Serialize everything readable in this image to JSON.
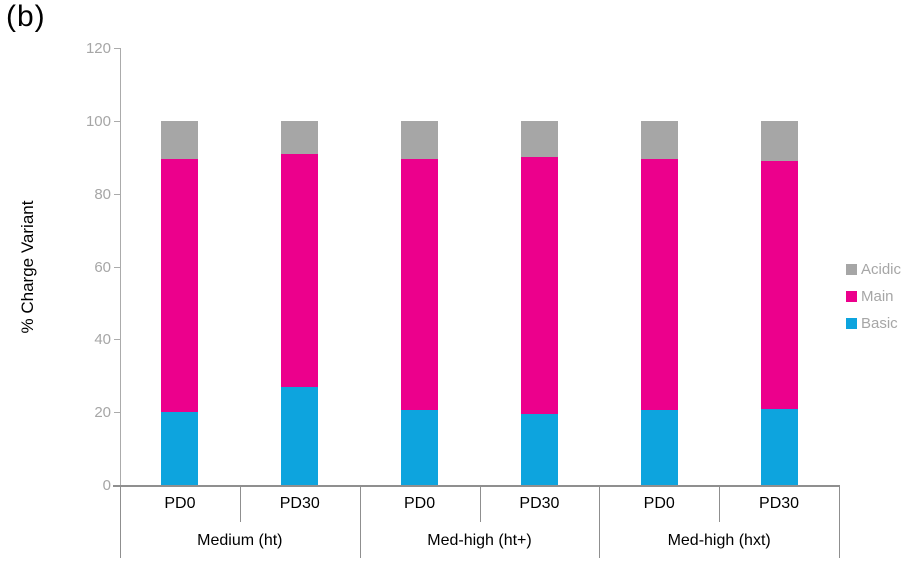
{
  "panel_label": "(b)",
  "chart_data": {
    "type": "bar",
    "subtype": "stacked-vertical",
    "title": "",
    "ylabel": "% Charge Variant",
    "xlabel": "",
    "ylim": [
      0,
      120
    ],
    "yticks": [
      0,
      20,
      40,
      60,
      80,
      100,
      120
    ],
    "grid": "off",
    "legend_position": "right",
    "categories": [
      "PD0",
      "PD30",
      "PD0",
      "PD30",
      "PD0",
      "PD30"
    ],
    "group_labels": [
      "Medium (ht)",
      "Med-high (ht+)",
      "Med-high (hxt)"
    ],
    "series": [
      {
        "name": "Basic",
        "color": "#0DA4DE",
        "values": [
          20,
          27,
          20.5,
          19.5,
          20.5,
          21
        ]
      },
      {
        "name": "Main",
        "color": "#EC008C",
        "values": [
          69.5,
          64,
          69,
          70.5,
          69,
          68
        ]
      },
      {
        "name": "Acidic",
        "color": "#A6A6A6",
        "values": [
          10.5,
          9,
          10.5,
          10,
          10.5,
          11
        ]
      }
    ],
    "stack_totals": [
      100,
      100,
      100,
      100,
      100,
      100
    ],
    "legend": [
      {
        "label": "Acidic",
        "color": "#A6A6A6"
      },
      {
        "label": "Main",
        "color": "#EC008C"
      },
      {
        "label": "Basic",
        "color": "#0DA4DE"
      }
    ]
  }
}
